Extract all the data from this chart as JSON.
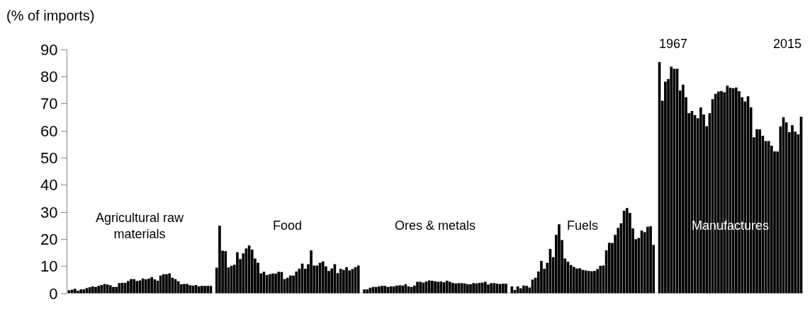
{
  "chart_data": {
    "type": "bar",
    "ylabel": "(% of imports)",
    "categories": [
      null,
      null,
      null,
      null,
      null,
      null,
      null,
      null,
      null,
      null,
      null,
      null,
      null,
      null,
      null,
      null,
      null,
      null,
      null,
      null,
      null,
      null,
      null,
      null,
      null,
      null,
      null,
      null,
      null,
      null,
      null,
      null,
      null,
      null,
      null,
      null,
      null,
      null,
      null,
      null,
      null,
      null,
      null,
      null,
      null,
      null,
      null,
      null,
      null,
      null,
      null,
      null,
      null,
      null,
      null,
      null,
      null,
      null,
      null,
      null,
      null,
      null,
      null,
      null,
      null,
      null,
      null,
      null,
      null,
      null,
      null,
      null,
      null,
      null,
      null,
      null,
      null,
      null,
      null,
      null,
      null,
      null,
      null,
      null,
      null,
      null,
      null,
      null,
      null,
      null,
      null,
      null,
      null,
      null,
      null,
      null,
      null,
      null,
      null,
      null,
      null,
      null,
      null,
      null,
      null,
      null,
      null,
      null,
      null,
      null,
      null,
      null,
      null,
      null,
      null,
      null,
      null,
      null,
      null,
      null,
      null,
      null,
      null,
      null,
      null,
      null,
      null,
      null,
      null,
      null,
      null,
      null,
      null,
      null,
      null,
      null,
      null,
      null,
      null,
      null,
      null,
      null,
      null,
      null,
      null,
      null,
      null,
      null,
      null,
      null,
      null,
      null,
      null,
      null,
      null,
      null,
      null,
      null,
      null,
      null,
      null,
      null,
      null,
      null,
      null,
      null,
      null,
      null,
      null,
      null,
      null,
      null,
      null,
      null,
      null,
      null,
      null,
      null,
      null,
      null,
      null,
      null,
      null,
      null,
      null,
      null,
      null,
      null,
      null,
      null,
      null,
      null,
      null,
      null,
      null,
      null,
      null,
      null,
      null,
      null,
      null,
      null,
      null,
      null,
      null,
      null,
      null,
      null,
      null,
      null,
      null,
      null,
      null,
      null,
      null,
      null,
      null,
      null,
      null,
      null,
      null,
      null,
      null,
      null,
      null,
      null,
      null,
      null,
      null,
      null,
      null,
      null,
      null,
      null,
      null,
      null,
      null,
      null,
      null,
      null,
      null,
      null,
      null,
      null,
      null,
      null,
      null,
      null,
      null
    ],
    "series": [
      {
        "color": "#000000",
        "values": [
          1.2,
          1.4,
          1.7,
          1.0,
          1.5,
          1.5,
          2.0,
          2.3,
          2.6,
          2.4,
          2.8,
          3.1,
          3.5,
          3.3,
          3.0,
          2.4,
          2.4,
          3.8,
          3.9,
          3.9,
          4.6,
          5.3,
          5.3,
          4.6,
          4.8,
          5.5,
          5.2,
          5.5,
          6.0,
          5.2,
          4.7,
          6.6,
          7.1,
          7.1,
          7.4,
          5.8,
          5.3,
          4.5,
          3.4,
          3.5,
          3.5,
          3.0,
          2.9,
          3.1,
          2.6,
          2.8,
          2.8,
          2.8,
          2.8,
          null,
          9.5,
          25.0,
          15.8,
          15.6,
          9.6,
          10.2,
          10.6,
          15.2,
          12.7,
          14.8,
          16.6,
          17.7,
          16.2,
          12.9,
          11.3,
          7.4,
          8.0,
          6.8,
          7.1,
          7.4,
          7.3,
          8.0,
          7.9,
          5.3,
          5.8,
          6.6,
          6.6,
          8.1,
          9.1,
          11.0,
          9.1,
          10.8,
          15.9,
          10.3,
          10.3,
          11.3,
          11.8,
          10.0,
          8.3,
          9.2,
          10.8,
          7.5,
          9.1,
          8.7,
          9.7,
          8.5,
          9.0,
          9.7,
          10.3,
          null,
          1.5,
          1.5,
          2.1,
          2.4,
          2.4,
          2.6,
          2.8,
          2.8,
          2.4,
          2.6,
          2.6,
          2.9,
          3.0,
          2.9,
          3.4,
          2.6,
          2.4,
          2.9,
          4.3,
          4.3,
          4.0,
          4.4,
          4.8,
          4.7,
          4.5,
          4.3,
          4.4,
          4.1,
          4.7,
          4.3,
          3.9,
          3.7,
          3.8,
          3.8,
          3.7,
          3.4,
          3.4,
          3.8,
          3.7,
          3.9,
          4.0,
          4.3,
          3.3,
          3.8,
          3.8,
          3.6,
          3.5,
          3.6,
          3.6,
          null,
          2.6,
          1.3,
          2.6,
          1.9,
          2.9,
          2.8,
          2.2,
          5.1,
          5.8,
          8.1,
          12.0,
          9.1,
          11.3,
          16.4,
          13.4,
          21.6,
          25.5,
          19.7,
          12.9,
          11.7,
          10.5,
          9.8,
          9.2,
          9.3,
          8.7,
          8.5,
          8.3,
          8.2,
          8.3,
          9.0,
          10.2,
          10.3,
          15.9,
          18.7,
          18.6,
          21.6,
          24.2,
          25.9,
          30.5,
          31.5,
          29.7,
          24.0,
          20.0,
          20.5,
          23.2,
          22.6,
          24.6,
          24.8,
          17.9,
          null,
          85.4,
          71.1,
          78.1,
          79.1,
          83.7,
          82.9,
          82.9,
          74.9,
          77.0,
          72.4,
          66.5,
          67.3,
          65.8,
          64.6,
          68.6,
          66.0,
          61.7,
          66.5,
          71.7,
          73.6,
          74.5,
          74.7,
          74.2,
          76.6,
          75.9,
          75.7,
          76.0,
          74.6,
          72.4,
          70.8,
          72.7,
          68.7,
          57.6,
          60.6,
          60.5,
          58.2,
          56.2,
          56.2,
          54.5,
          52.4,
          52.4,
          61.6,
          65.0,
          63.1,
          59.5,
          62.1,
          59.7,
          58.7,
          65.2
        ]
      }
    ],
    "ylim": [
      0,
      90
    ],
    "yticks": [
      0,
      10,
      20,
      30,
      40,
      50,
      60,
      70,
      80,
      90
    ],
    "tick_labels": "y",
    "annotations": [
      "Agricultural raw materials",
      "Food",
      "Ores & metals",
      "Fuels",
      "Manufactures",
      "1967",
      "2015"
    ]
  }
}
